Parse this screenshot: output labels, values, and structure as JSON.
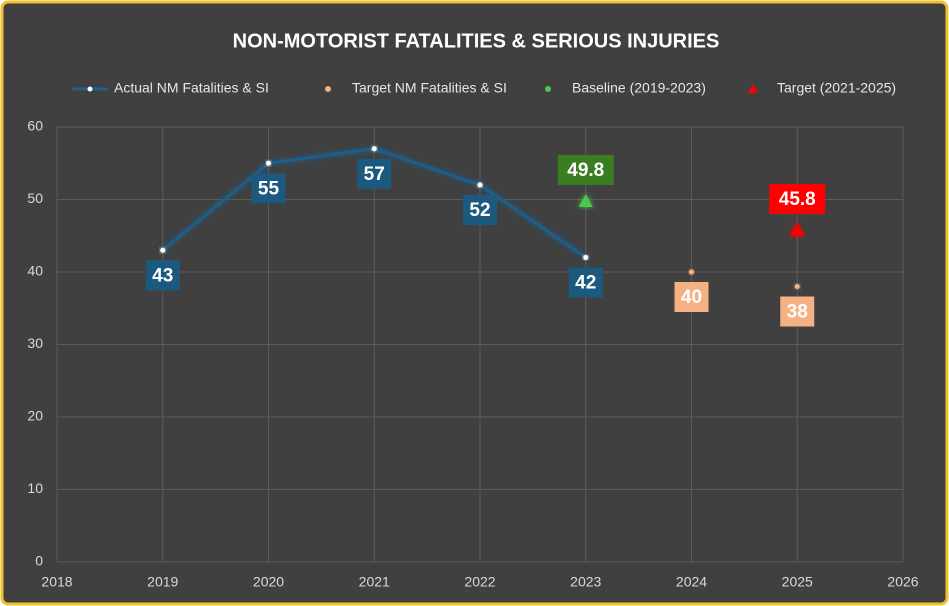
{
  "chart_data": {
    "type": "line",
    "title": "NON-MOTORIST FATALITIES & SERIOUS INJURIES",
    "xlim": [
      2018,
      2026
    ],
    "xticks": [
      2018,
      2019,
      2020,
      2021,
      2022,
      2023,
      2024,
      2025,
      2026
    ],
    "ylim": [
      0,
      60
    ],
    "yticks": [
      0,
      10,
      20,
      30,
      40,
      50,
      60
    ],
    "grid": true,
    "legend": "top",
    "series": [
      {
        "name": "Actual NM Fatalities & SI",
        "color": "#1f5f8b",
        "label_color": "#1b5a7e",
        "marker": "line",
        "x": [
          2019,
          2020,
          2021,
          2022,
          2023
        ],
        "values": [
          43,
          55,
          57,
          52,
          42
        ],
        "label_position": "below"
      },
      {
        "name": "Target NM Fatalities & SI",
        "color": "#f4b183",
        "label_color": "#f4b183",
        "marker": "dot",
        "x": [
          2024,
          2025
        ],
        "values": [
          40,
          38
        ],
        "label_position": "below"
      },
      {
        "name": "Baseline (2019-2023)",
        "color": "#4ec94e",
        "label_color": "#3a7d22",
        "marker": "triangle",
        "x": [
          2023
        ],
        "values": [
          49.8
        ],
        "label_position": "above"
      },
      {
        "name": "Target (2021-2025)",
        "color": "#ff0000",
        "label_color": "#ff0000",
        "marker": "triangle",
        "x": [
          2025
        ],
        "values": [
          45.8
        ],
        "label_position": "above"
      }
    ]
  }
}
